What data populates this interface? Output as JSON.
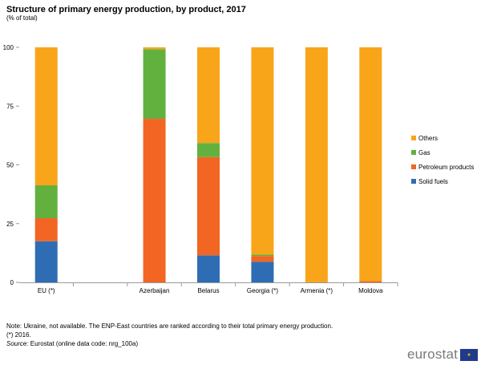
{
  "title": "Structure of primary energy production, by product, 2017",
  "subtitle": "(% of total)",
  "chart_data": {
    "type": "bar",
    "stacked": true,
    "categories": [
      "EU (*)",
      "",
      "Azerbaijan",
      "Belarus",
      "Georgia (*)",
      "Armenia (*)",
      "Moldova"
    ],
    "series": [
      {
        "name": "Solid fuels",
        "color": "#2e6db4",
        "values": [
          17.5,
          0,
          0,
          11.5,
          8.8,
          0,
          0
        ]
      },
      {
        "name": "Petroleum products",
        "color": "#f26522",
        "values": [
          9.8,
          0,
          69.6,
          41.8,
          2.4,
          0,
          0.5
        ]
      },
      {
        "name": "Gas",
        "color": "#62b13f",
        "values": [
          14.0,
          0,
          29.6,
          6.0,
          0.6,
          0,
          0
        ]
      },
      {
        "name": "Others",
        "color": "#f9a51a",
        "values": [
          58.7,
          0,
          0.8,
          40.7,
          88.2,
          100,
          99.5
        ]
      }
    ],
    "ylim": [
      0,
      100
    ],
    "yticks": [
      0,
      25,
      50,
      75,
      100
    ],
    "grid": false,
    "legend": "right",
    "legend_order": [
      "Others",
      "Gas",
      "Petroleum products",
      "Solid fuels"
    ]
  },
  "footnotes": {
    "note": "Note: Ukraine, not available. The ENP-East countries are ranked according to their total primary energy production.",
    "star": "(*) 2016.",
    "source_label": "Source:",
    "source_text": " Eurostat (online data code: nrg_100a)"
  },
  "logo": {
    "text": "eurostat",
    "flag_icon": "eu-flag-icon"
  }
}
